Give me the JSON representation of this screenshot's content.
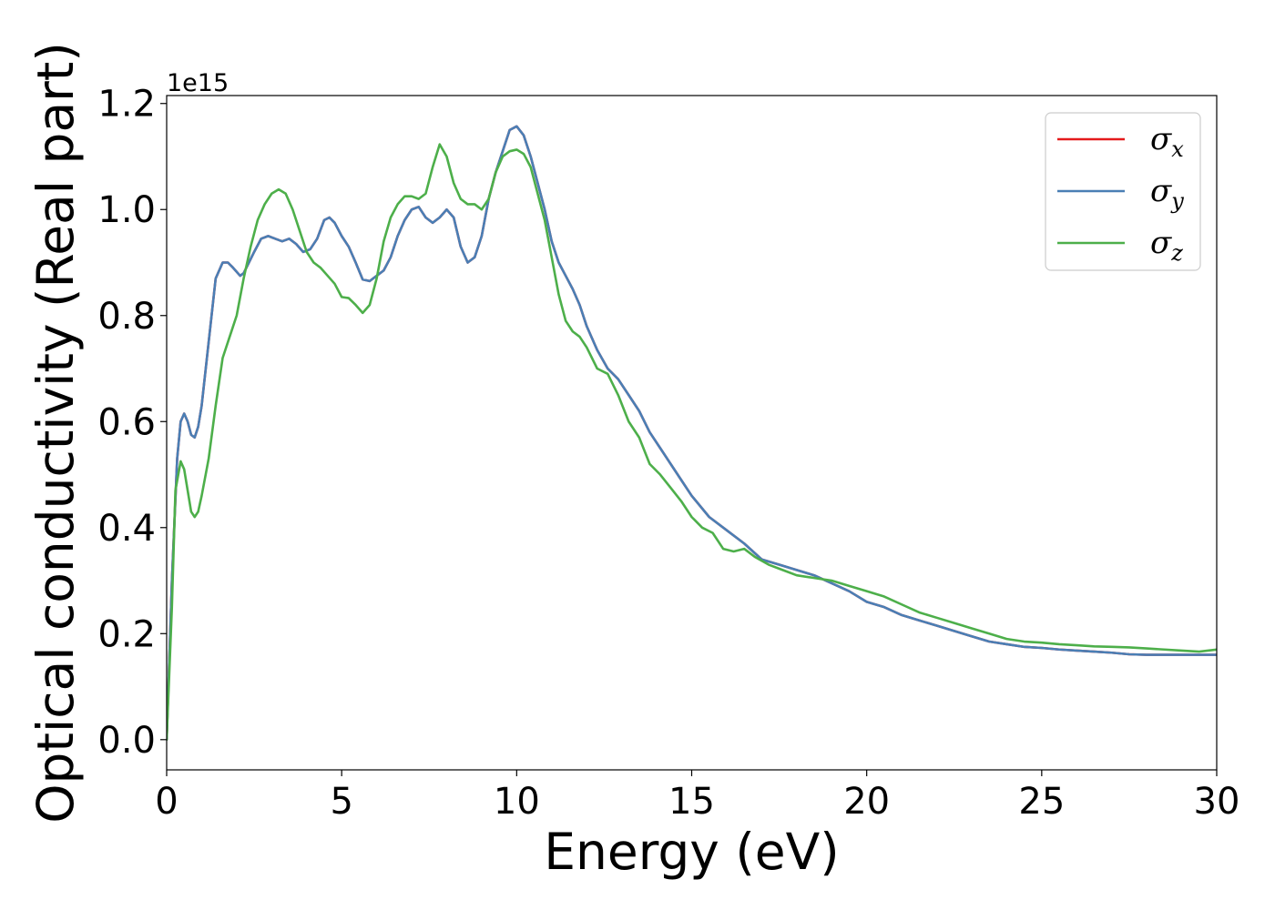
{
  "chart_data": {
    "type": "line",
    "title": "",
    "xlabel": "Energy (eV)",
    "ylabel": "Optical conductivity (Real part)",
    "offset_text": "1e15",
    "xlim": [
      0,
      30
    ],
    "ylim": [
      -0.057,
      1.215
    ],
    "y_scale_factor": 1000000000000000.0,
    "xticks": [
      0,
      5,
      10,
      15,
      20,
      25,
      30
    ],
    "xtick_labels": [
      "0",
      "5",
      "10",
      "15",
      "20",
      "25",
      "30"
    ],
    "yticks": [
      0.0,
      0.2,
      0.4,
      0.6,
      0.8,
      1.0,
      1.2
    ],
    "ytick_labels": [
      "0.0",
      "0.2",
      "0.4",
      "0.6",
      "0.8",
      "1.0",
      "1.2"
    ],
    "grid": false,
    "legend_position": "upper-right",
    "series": [
      {
        "name": "σx",
        "legend_base": "σ",
        "legend_sub": "x",
        "color": "#e41a1c",
        "x": [
          0,
          0.15,
          0.3,
          0.4,
          0.5,
          0.6,
          0.7,
          0.8,
          0.9,
          1.0,
          1.2,
          1.4,
          1.6,
          1.75,
          1.9,
          2.1,
          2.2,
          2.35,
          2.5,
          2.7,
          2.9,
          3.1,
          3.3,
          3.5,
          3.7,
          3.9,
          4.1,
          4.3,
          4.5,
          4.65,
          4.8,
          5.0,
          5.2,
          5.4,
          5.6,
          5.8,
          6.0,
          6.2,
          6.4,
          6.6,
          6.8,
          7.0,
          7.2,
          7.4,
          7.6,
          7.8,
          8.0,
          8.2,
          8.4,
          8.6,
          8.8,
          9.0,
          9.2,
          9.4,
          9.6,
          9.8,
          10.0,
          10.2,
          10.4,
          10.6,
          10.8,
          11.0,
          11.2,
          11.4,
          11.6,
          11.8,
          12.0,
          12.3,
          12.6,
          12.9,
          13.2,
          13.5,
          13.8,
          14.1,
          14.4,
          14.7,
          15.0,
          15.5,
          16.0,
          16.5,
          17.0,
          17.5,
          18.0,
          18.5,
          19.0,
          19.5,
          20.0,
          20.5,
          21.0,
          21.5,
          22.0,
          22.5,
          23.0,
          23.5,
          24.0,
          24.5,
          25.0,
          25.5,
          26.0,
          26.5,
          27.0,
          27.5,
          28.0,
          28.5,
          29.0,
          29.5,
          30.0
        ],
        "values": [
          0.0,
          0.3,
          0.53,
          0.6,
          0.615,
          0.6,
          0.575,
          0.57,
          0.59,
          0.63,
          0.75,
          0.87,
          0.9,
          0.9,
          0.89,
          0.875,
          0.88,
          0.9,
          0.92,
          0.945,
          0.95,
          0.945,
          0.94,
          0.945,
          0.935,
          0.92,
          0.925,
          0.945,
          0.98,
          0.985,
          0.975,
          0.95,
          0.93,
          0.9,
          0.868,
          0.865,
          0.875,
          0.885,
          0.91,
          0.95,
          0.98,
          1.0,
          1.005,
          0.985,
          0.975,
          0.985,
          1.0,
          0.985,
          0.93,
          0.9,
          0.91,
          0.95,
          1.02,
          1.07,
          1.11,
          1.15,
          1.157,
          1.14,
          1.1,
          1.05,
          1.0,
          0.94,
          0.9,
          0.875,
          0.85,
          0.82,
          0.78,
          0.735,
          0.7,
          0.68,
          0.65,
          0.62,
          0.58,
          0.55,
          0.52,
          0.49,
          0.46,
          0.42,
          0.395,
          0.37,
          0.34,
          0.33,
          0.32,
          0.31,
          0.295,
          0.28,
          0.26,
          0.25,
          0.235,
          0.225,
          0.215,
          0.205,
          0.195,
          0.185,
          0.18,
          0.175,
          0.173,
          0.17,
          0.168,
          0.166,
          0.164,
          0.161,
          0.16,
          0.16,
          0.16,
          0.16,
          0.16
        ]
      },
      {
        "name": "σy",
        "legend_base": "σ",
        "legend_sub": "y",
        "color": "#4a7fb5",
        "x": [
          0,
          0.15,
          0.3,
          0.4,
          0.5,
          0.6,
          0.7,
          0.8,
          0.9,
          1.0,
          1.2,
          1.4,
          1.6,
          1.75,
          1.9,
          2.1,
          2.2,
          2.35,
          2.5,
          2.7,
          2.9,
          3.1,
          3.3,
          3.5,
          3.7,
          3.9,
          4.1,
          4.3,
          4.5,
          4.65,
          4.8,
          5.0,
          5.2,
          5.4,
          5.6,
          5.8,
          6.0,
          6.2,
          6.4,
          6.6,
          6.8,
          7.0,
          7.2,
          7.4,
          7.6,
          7.8,
          8.0,
          8.2,
          8.4,
          8.6,
          8.8,
          9.0,
          9.2,
          9.4,
          9.6,
          9.8,
          10.0,
          10.2,
          10.4,
          10.6,
          10.8,
          11.0,
          11.2,
          11.4,
          11.6,
          11.8,
          12.0,
          12.3,
          12.6,
          12.9,
          13.2,
          13.5,
          13.8,
          14.1,
          14.4,
          14.7,
          15.0,
          15.5,
          16.0,
          16.5,
          17.0,
          17.5,
          18.0,
          18.5,
          19.0,
          19.5,
          20.0,
          20.5,
          21.0,
          21.5,
          22.0,
          22.5,
          23.0,
          23.5,
          24.0,
          24.5,
          25.0,
          25.5,
          26.0,
          26.5,
          27.0,
          27.5,
          28.0,
          28.5,
          29.0,
          29.5,
          30.0
        ],
        "values": [
          0.0,
          0.3,
          0.53,
          0.6,
          0.615,
          0.6,
          0.575,
          0.57,
          0.59,
          0.63,
          0.75,
          0.87,
          0.9,
          0.9,
          0.89,
          0.875,
          0.88,
          0.9,
          0.92,
          0.945,
          0.95,
          0.945,
          0.94,
          0.945,
          0.935,
          0.92,
          0.925,
          0.945,
          0.98,
          0.985,
          0.975,
          0.95,
          0.93,
          0.9,
          0.868,
          0.865,
          0.875,
          0.885,
          0.91,
          0.95,
          0.98,
          1.0,
          1.005,
          0.985,
          0.975,
          0.985,
          1.0,
          0.985,
          0.93,
          0.9,
          0.91,
          0.95,
          1.02,
          1.07,
          1.11,
          1.15,
          1.157,
          1.14,
          1.1,
          1.05,
          1.0,
          0.94,
          0.9,
          0.875,
          0.85,
          0.82,
          0.78,
          0.735,
          0.7,
          0.68,
          0.65,
          0.62,
          0.58,
          0.55,
          0.52,
          0.49,
          0.46,
          0.42,
          0.395,
          0.37,
          0.34,
          0.33,
          0.32,
          0.31,
          0.295,
          0.28,
          0.26,
          0.25,
          0.235,
          0.225,
          0.215,
          0.205,
          0.195,
          0.185,
          0.18,
          0.175,
          0.173,
          0.17,
          0.168,
          0.166,
          0.164,
          0.161,
          0.16,
          0.16,
          0.16,
          0.16,
          0.16
        ]
      },
      {
        "name": "σz",
        "legend_base": "σ",
        "legend_sub": "z",
        "color": "#4daf4a",
        "x": [
          0,
          0.15,
          0.25,
          0.4,
          0.5,
          0.6,
          0.7,
          0.8,
          0.9,
          1.0,
          1.2,
          1.4,
          1.6,
          1.8,
          2.0,
          2.2,
          2.4,
          2.6,
          2.8,
          3.0,
          3.2,
          3.4,
          3.6,
          3.8,
          4.0,
          4.2,
          4.4,
          4.6,
          4.8,
          5.0,
          5.2,
          5.4,
          5.6,
          5.8,
          6.0,
          6.2,
          6.4,
          6.6,
          6.8,
          7.0,
          7.2,
          7.4,
          7.6,
          7.8,
          8.0,
          8.2,
          8.4,
          8.6,
          8.8,
          9.0,
          9.2,
          9.4,
          9.6,
          9.8,
          10.0,
          10.2,
          10.4,
          10.6,
          10.8,
          11.0,
          11.2,
          11.4,
          11.6,
          11.8,
          12.0,
          12.3,
          12.6,
          12.9,
          13.2,
          13.5,
          13.8,
          14.1,
          14.4,
          14.7,
          15.0,
          15.3,
          15.6,
          15.9,
          16.2,
          16.5,
          16.8,
          17.2,
          17.6,
          18.0,
          18.5,
          19.0,
          19.5,
          20.0,
          20.5,
          21.0,
          21.5,
          22.0,
          22.5,
          23.0,
          23.5,
          24.0,
          24.5,
          25.0,
          25.5,
          26.0,
          26.5,
          27.0,
          27.5,
          28.0,
          28.5,
          29.0,
          29.5,
          30.0
        ],
        "values": [
          0.0,
          0.25,
          0.47,
          0.525,
          0.51,
          0.47,
          0.43,
          0.42,
          0.43,
          0.46,
          0.53,
          0.63,
          0.72,
          0.76,
          0.8,
          0.87,
          0.93,
          0.98,
          1.01,
          1.03,
          1.038,
          1.03,
          1.0,
          0.96,
          0.92,
          0.9,
          0.89,
          0.875,
          0.86,
          0.835,
          0.833,
          0.82,
          0.805,
          0.82,
          0.87,
          0.94,
          0.985,
          1.01,
          1.025,
          1.025,
          1.02,
          1.03,
          1.08,
          1.123,
          1.1,
          1.05,
          1.02,
          1.01,
          1.01,
          1.0,
          1.02,
          1.07,
          1.1,
          1.11,
          1.113,
          1.105,
          1.08,
          1.03,
          0.98,
          0.91,
          0.84,
          0.79,
          0.77,
          0.76,
          0.74,
          0.7,
          0.69,
          0.65,
          0.6,
          0.57,
          0.52,
          0.5,
          0.475,
          0.45,
          0.42,
          0.4,
          0.39,
          0.36,
          0.355,
          0.36,
          0.345,
          0.33,
          0.32,
          0.31,
          0.305,
          0.3,
          0.29,
          0.28,
          0.27,
          0.255,
          0.24,
          0.23,
          0.22,
          0.21,
          0.2,
          0.19,
          0.185,
          0.183,
          0.18,
          0.178,
          0.176,
          0.175,
          0.174,
          0.172,
          0.17,
          0.168,
          0.166,
          0.17
        ]
      }
    ]
  }
}
